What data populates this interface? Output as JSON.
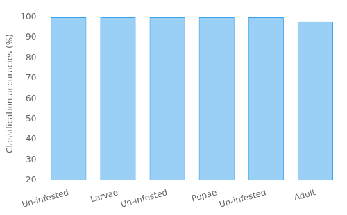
{
  "chart_data": {
    "type": "bar",
    "categories": [
      "Un-infested",
      "Larvae",
      "Un-infested",
      "Pupae",
      "Un-infested",
      "Adult"
    ],
    "values": [
      100,
      100,
      100,
      100,
      100,
      98
    ],
    "ylabel": "Classification accuracies (%)",
    "ylim": [
      20,
      105
    ],
    "yticks": [
      20,
      30,
      40,
      50,
      60,
      70,
      80,
      90,
      100
    ],
    "grid": false
  }
}
